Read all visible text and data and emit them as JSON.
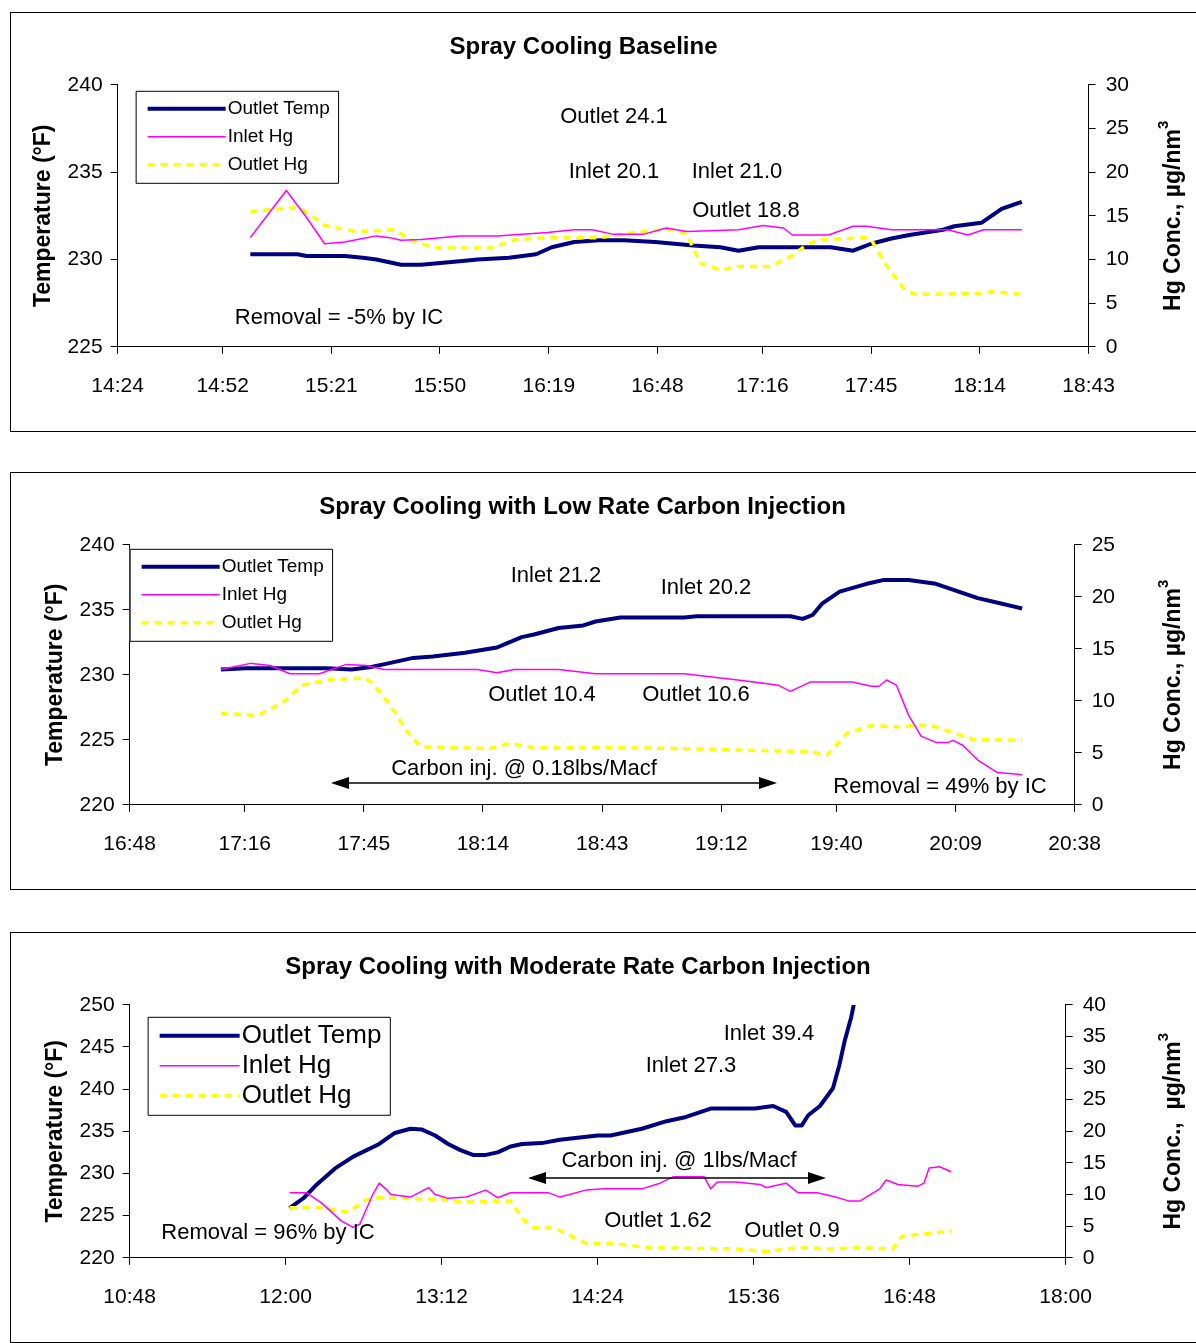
{
  "chart_data": [
    {
      "type": "line",
      "title": "Spray Cooling Baseline",
      "ylabel": "Temperature (°F)",
      "y2label": "Hg Conc., µg/nm$^{3}$",
      "xlim": [
        14.4,
        18.717
      ],
      "xticks": [
        {
          "value": 14.4,
          "label": "14:24"
        },
        {
          "value": 14.867,
          "label": "14:52"
        },
        {
          "value": 15.35,
          "label": "15:21"
        },
        {
          "value": 15.833,
          "label": "15:50"
        },
        {
          "value": 16.317,
          "label": "16:19"
        },
        {
          "value": 16.8,
          "label": "16:48"
        },
        {
          "value": 17.267,
          "label": "17:16"
        },
        {
          "value": 17.75,
          "label": "17:45"
        },
        {
          "value": 18.233,
          "label": "18:14"
        },
        {
          "value": 18.717,
          "label": "18:43"
        }
      ],
      "ylim": [
        225,
        240
      ],
      "yticks": [
        225,
        230,
        235,
        240
      ],
      "y2lim": [
        0,
        30
      ],
      "y2ticks": [
        0,
        5,
        10,
        15,
        20,
        25,
        30
      ],
      "grid": false,
      "legend": "top left",
      "marker": "none",
      "series": [
        {
          "name": "Outlet Temp",
          "color": "#000080",
          "line_style": "solid",
          "x": [
            14.99,
            15.2,
            15.24,
            15.41,
            15.49,
            15.55,
            15.66,
            15.75,
            15.92,
            16.0,
            16.14,
            16.26,
            16.33,
            16.43,
            16.54,
            16.65,
            16.79,
            16.96,
            17.08,
            17.16,
            17.25,
            17.57,
            17.67,
            17.75,
            17.84,
            17.92,
            18.07,
            18.12,
            18.24,
            18.33,
            18.42
          ],
          "values": [
            230.3,
            230.3,
            230.2,
            230.2,
            230.1,
            230.0,
            229.7,
            229.7,
            229.9,
            230.0,
            230.1,
            230.3,
            230.7,
            231.0,
            231.1,
            231.1,
            231.0,
            230.8,
            230.7,
            230.5,
            230.7,
            230.7,
            230.5,
            230.9,
            231.2,
            231.4,
            231.7,
            231.9,
            232.1,
            232.9,
            233.3
          ]
        },
        {
          "name": "Inlet Hg",
          "color": "#ff00ff",
          "line_style": "solid",
          "axis": "y2",
          "x": [
            14.99,
            15.15,
            15.24,
            15.32,
            15.41,
            15.49,
            15.55,
            15.61,
            15.66,
            15.75,
            15.92,
            16.09,
            16.31,
            16.43,
            16.51,
            16.6,
            16.74,
            16.84,
            16.93,
            17.16,
            17.27,
            17.36,
            17.4,
            17.56,
            17.67,
            17.73,
            17.84,
            18.09,
            18.18,
            18.25,
            18.42
          ],
          "values": [
            12.5,
            17.9,
            14.8,
            11.8,
            12.0,
            12.4,
            12.7,
            12.5,
            12.2,
            12.3,
            12.7,
            12.7,
            13.1,
            13.4,
            13.4,
            12.9,
            12.9,
            13.6,
            13.2,
            13.4,
            13.9,
            13.6,
            12.8,
            12.8,
            13.8,
            13.8,
            13.4,
            13.4,
            12.8,
            13.4,
            13.4
          ]
        },
        {
          "name": "Outlet Hg",
          "color": "#ffff00",
          "line_style": "dashed",
          "axis": "y2",
          "x": [
            14.99,
            15.15,
            15.21,
            15.29,
            15.32,
            15.46,
            15.63,
            15.72,
            15.83,
            16.06,
            16.17,
            16.31,
            16.54,
            16.76,
            16.88,
            16.93,
            16.99,
            17.08,
            17.16,
            17.3,
            17.39,
            17.47,
            17.53,
            17.73,
            17.75,
            17.81,
            17.9,
            17.95,
            18.24,
            18.29,
            18.42
          ],
          "values": [
            15.5,
            15.9,
            15.9,
            14.5,
            13.9,
            13.2,
            13.4,
            12.0,
            11.3,
            11.3,
            12.3,
            12.5,
            12.5,
            13.3,
            13.4,
            12.9,
            9.6,
            8.8,
            9.2,
            9.2,
            10.3,
            11.8,
            12.3,
            12.5,
            12.3,
            9.6,
            6.5,
            6.0,
            6.1,
            6.3,
            6.0
          ]
        }
      ],
      "annotations": [
        "Outlet 24.1",
        "Inlet 20.1",
        "Inlet 21.0",
        "Outlet 18.8",
        "Removal = -5% by IC"
      ]
    },
    {
      "type": "line",
      "title": "Spray Cooling with Low Rate Carbon Injection",
      "ylabel": "Temperature (°F)",
      "y2label": "Hg Conc., µg/nm$^{3}$",
      "xlim": [
        16.8,
        20.633
      ],
      "xticks": [
        {
          "value": 16.8,
          "label": "16:48"
        },
        {
          "value": 17.267,
          "label": "17:16"
        },
        {
          "value": 17.75,
          "label": "17:45"
        },
        {
          "value": 18.233,
          "label": "18:14"
        },
        {
          "value": 18.717,
          "label": "18:43"
        },
        {
          "value": 19.2,
          "label": "19:12"
        },
        {
          "value": 19.667,
          "label": "19:40"
        },
        {
          "value": 20.15,
          "label": "20:09"
        },
        {
          "value": 20.633,
          "label": "20:38"
        }
      ],
      "ylim": [
        220,
        240
      ],
      "yticks": [
        220,
        225,
        230,
        235,
        240
      ],
      "y2lim": [
        0,
        25
      ],
      "y2ticks": [
        0,
        5,
        10,
        15,
        20,
        25
      ],
      "grid": false,
      "legend": "top left",
      "marker": "none",
      "series": [
        {
          "name": "Outlet Temp",
          "color": "#000080",
          "line_style": "solid",
          "x": [
            17.17,
            17.27,
            17.6,
            17.7,
            17.78,
            17.83,
            17.95,
            18.03,
            18.16,
            18.29,
            18.39,
            18.44,
            18.54,
            18.64,
            18.69,
            18.79,
            19.05,
            19.1,
            19.48,
            19.53,
            19.57,
            19.61,
            19.68,
            19.79,
            19.86,
            19.96,
            20.07,
            20.24,
            20.33,
            20.42
          ],
          "values": [
            230.4,
            230.5,
            230.5,
            230.4,
            230.6,
            230.8,
            231.3,
            231.4,
            231.7,
            232.1,
            232.9,
            233.1,
            233.6,
            233.8,
            234.1,
            234.4,
            234.4,
            234.5,
            234.5,
            234.3,
            234.6,
            235.5,
            236.4,
            237.0,
            237.3,
            237.3,
            237.0,
            235.9,
            235.5,
            235.1
          ]
        },
        {
          "name": "Inlet Hg",
          "color": "#ff00ff",
          "line_style": "solid",
          "axis": "y2",
          "x": [
            17.17,
            17.29,
            17.37,
            17.45,
            17.57,
            17.68,
            17.76,
            17.83,
            18.21,
            18.29,
            18.36,
            18.54,
            18.69,
            19.05,
            19.3,
            19.43,
            19.48,
            19.56,
            19.73,
            19.81,
            19.84,
            19.87,
            19.91,
            19.96,
            20.01,
            20.07,
            20.12,
            20.14,
            20.18,
            20.24,
            20.32,
            20.42
          ],
          "values": [
            13.0,
            13.6,
            13.4,
            12.6,
            12.6,
            13.5,
            13.4,
            13.0,
            13.0,
            12.7,
            13.0,
            13.0,
            12.6,
            12.6,
            11.9,
            11.5,
            10.9,
            11.8,
            11.8,
            11.4,
            11.4,
            12.0,
            11.5,
            8.6,
            6.6,
            6.0,
            6.0,
            6.2,
            5.7,
            4.3,
            3.1,
            2.9
          ]
        },
        {
          "name": "Outlet Hg",
          "color": "#ffff00",
          "line_style": "dashed",
          "axis": "y2",
          "x": [
            17.17,
            17.32,
            17.42,
            17.5,
            17.6,
            17.75,
            17.78,
            17.85,
            17.93,
            17.98,
            18.26,
            18.34,
            18.44,
            18.74,
            19.05,
            19.56,
            19.63,
            19.71,
            19.81,
            19.91,
            20.04,
            20.22,
            20.42
          ],
          "values": [
            8.8,
            8.6,
            9.8,
            11.5,
            12.0,
            12.2,
            11.8,
            9.8,
            6.9,
            5.6,
            5.4,
            5.9,
            5.5,
            5.5,
            5.4,
            5.1,
            4.8,
            6.9,
            7.6,
            7.5,
            7.7,
            6.3,
            6.2
          ]
        }
      ],
      "annotations": [
        "Inlet 21.2",
        "Inlet 20.2",
        "Outlet 10.4",
        "Outlet 10.6",
        "Carbon inj. @ 0.18lbs/Macf",
        "Removal = 49% by IC"
      ]
    },
    {
      "type": "line",
      "title": "Spray Cooling with Moderate Rate Carbon Injection",
      "ylabel": "Temperature (°F)",
      "y2label": "Hg Conc.,  µg/nm$^{3}$",
      "xlim": [
        10.8,
        18
      ],
      "xticks": [
        {
          "value": 10.8,
          "label": "10:48"
        },
        {
          "value": 12,
          "label": "12:00"
        },
        {
          "value": 13.2,
          "label": "13:12"
        },
        {
          "value": 14.4,
          "label": "14:24"
        },
        {
          "value": 15.6,
          "label": "15:36"
        },
        {
          "value": 16.8,
          "label": "16:48"
        },
        {
          "value": 18,
          "label": "18:00"
        }
      ],
      "ylim": [
        220,
        250
      ],
      "yticks": [
        220,
        225,
        230,
        235,
        240,
        245,
        250
      ],
      "y2lim": [
        0,
        40
      ],
      "y2ticks": [
        0,
        5,
        10,
        15,
        20,
        25,
        30,
        35,
        40
      ],
      "grid": false,
      "legend": "top left",
      "marker": "none",
      "series": [
        {
          "name": "Outlet Temp",
          "color": "#000080",
          "line_style": "solid",
          "x": [
            12.03,
            12.14,
            12.24,
            12.38,
            12.52,
            12.72,
            12.84,
            12.96,
            13.05,
            13.15,
            13.25,
            13.34,
            13.44,
            13.54,
            13.63,
            13.73,
            13.82,
            13.97,
            14.11,
            14.4,
            14.5,
            14.74,
            14.93,
            15.08,
            15.27,
            15.61,
            15.75,
            15.85,
            15.92,
            15.97,
            16.02,
            16.11,
            16.21,
            16.26,
            16.3,
            16.35,
            16.37
          ],
          "values": [
            225.9,
            227.1,
            228.7,
            230.6,
            232.0,
            233.5,
            234.8,
            235.3,
            235.2,
            234.5,
            233.5,
            232.8,
            232.2,
            232.2,
            232.5,
            233.2,
            233.5,
            233.6,
            234.0,
            234.5,
            234.5,
            235.3,
            236.2,
            236.7,
            237.7,
            237.7,
            238.0,
            237.3,
            235.7,
            235.7,
            236.9,
            238.0,
            240.1,
            242.9,
            245.7,
            248.5,
            250
          ]
        },
        {
          "name": "Inlet Hg",
          "color": "#ff00ff",
          "line_style": "solid",
          "axis": "y2",
          "x": [
            12.03,
            12.16,
            12.28,
            12.43,
            12.52,
            12.57,
            12.67,
            12.72,
            12.77,
            12.81,
            12.96,
            13.1,
            13.15,
            13.25,
            13.39,
            13.54,
            13.63,
            13.73,
            14.02,
            14.11,
            14.31,
            14.45,
            14.74,
            14.88,
            14.98,
            15.22,
            15.27,
            15.32,
            15.46,
            15.65,
            15.7,
            15.85,
            15.94,
            16.09,
            16.23,
            16.33,
            16.42,
            16.57,
            16.62,
            16.71,
            16.86,
            16.91,
            16.95,
            17.03,
            17.12
          ],
          "values": [
            10.3,
            10.3,
            8.6,
            5.8,
            4.8,
            5.3,
            10.0,
            11.8,
            10.9,
            10.0,
            9.6,
            11.1,
            10.0,
            9.4,
            9.6,
            10.7,
            9.5,
            10.3,
            10.3,
            9.6,
            10.7,
            10.9,
            10.9,
            11.8,
            12.8,
            12.8,
            10.9,
            12.0,
            12.0,
            11.6,
            11.1,
            11.8,
            10.3,
            10.3,
            9.6,
            9.0,
            9.0,
            10.9,
            12.3,
            11.6,
            11.3,
            11.8,
            14.2,
            14.4,
            13.6
          ]
        },
        {
          "name": "Outlet Hg",
          "color": "#ffff00",
          "line_style": "dashed",
          "axis": "y2",
          "x": [
            12.03,
            12.28,
            12.48,
            12.62,
            12.72,
            13.25,
            13.34,
            13.73,
            13.82,
            13.9,
            14.07,
            14.31,
            14.5,
            14.79,
            15.46,
            15.7,
            15.94,
            16.18,
            16.42,
            16.67,
            16.74,
            16.91,
            17.12
          ],
          "values": [
            7.9,
            7.9,
            7.2,
            9.2,
            9.5,
            9.2,
            8.8,
            9.0,
            6.2,
            4.8,
            4.7,
            2.3,
            2.3,
            1.6,
            1.4,
            1.0,
            1.6,
            1.4,
            1.6,
            1.4,
            3.4,
            3.8,
            4.2
          ]
        }
      ],
      "annotations": [
        "Inlet 39.4",
        "Inlet 27.3",
        "Carbon inj. @ 1lbs/Macf",
        "Outlet 1.62",
        "Outlet 0.9",
        "Removal = 96% by IC"
      ]
    }
  ]
}
